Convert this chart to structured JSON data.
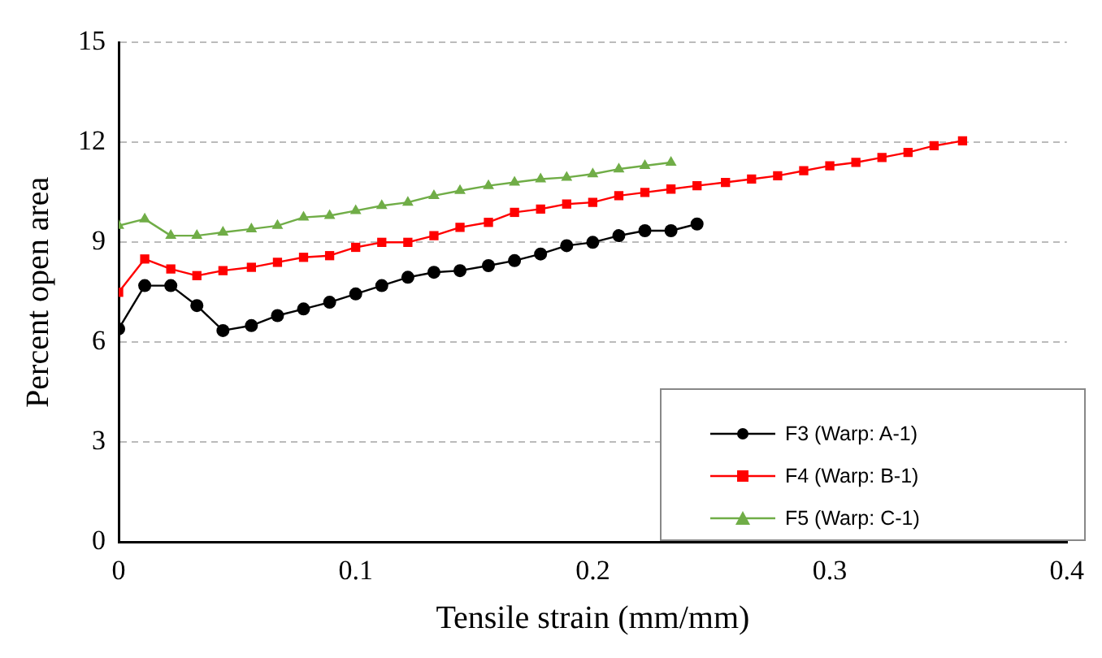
{
  "chart_data": {
    "type": "line",
    "xlabel": "Tensile strain (mm/mm)",
    "ylabel": "Percent open area",
    "xlim": [
      0,
      0.4
    ],
    "xticks": [
      0,
      0.1,
      0.2,
      0.3,
      0.4
    ],
    "ylim": [
      0,
      15
    ],
    "yticks": [
      0,
      3,
      6,
      9,
      12,
      15
    ],
    "grid": "y",
    "legend": "bottom right",
    "line_style": "solid",
    "series": [
      {
        "name": "F3 (Warp: A-1)",
        "color": "#000000",
        "marker": "circle",
        "x": [
          0,
          0.011,
          0.022,
          0.033,
          0.044,
          0.056,
          0.067,
          0.078,
          0.089,
          0.1,
          0.111,
          0.122,
          0.133,
          0.144,
          0.156,
          0.167,
          0.178,
          0.189,
          0.2,
          0.211,
          0.222,
          0.233,
          0.244
        ],
        "values": [
          6.4,
          7.7,
          7.7,
          7.1,
          6.35,
          6.5,
          6.8,
          7.0,
          7.2,
          7.45,
          7.7,
          7.95,
          8.1,
          8.15,
          8.3,
          8.45,
          8.65,
          8.9,
          9.0,
          9.2,
          9.35,
          9.35,
          9.55
        ]
      },
      {
        "name": "F4 (Warp: B-1)",
        "color": "#ff0000",
        "marker": "square",
        "x": [
          0,
          0.011,
          0.022,
          0.033,
          0.044,
          0.056,
          0.067,
          0.078,
          0.089,
          0.1,
          0.111,
          0.122,
          0.133,
          0.144,
          0.156,
          0.167,
          0.178,
          0.189,
          0.2,
          0.211,
          0.222,
          0.233,
          0.244,
          0.256,
          0.267,
          0.278,
          0.289,
          0.3,
          0.311,
          0.322,
          0.333,
          0.344,
          0.356
        ],
        "values": [
          7.5,
          8.5,
          8.2,
          8.0,
          8.15,
          8.25,
          8.4,
          8.55,
          8.6,
          8.85,
          9.0,
          9.0,
          9.2,
          9.45,
          9.6,
          9.9,
          10.0,
          10.15,
          10.2,
          10.4,
          10.5,
          10.6,
          10.7,
          10.8,
          10.9,
          11.0,
          11.15,
          11.3,
          11.4,
          11.55,
          11.7,
          11.9,
          12.05
        ]
      },
      {
        "name": "F5 (Warp: C-1)",
        "color": "#70ad47",
        "marker": "triangle",
        "x": [
          0,
          0.011,
          0.022,
          0.033,
          0.044,
          0.056,
          0.067,
          0.078,
          0.089,
          0.1,
          0.111,
          0.122,
          0.133,
          0.144,
          0.156,
          0.167,
          0.178,
          0.189,
          0.2,
          0.211,
          0.222,
          0.233
        ],
        "values": [
          9.5,
          9.7,
          9.2,
          9.2,
          9.3,
          9.4,
          9.5,
          9.75,
          9.8,
          9.95,
          10.1,
          10.2,
          10.4,
          10.55,
          10.7,
          10.8,
          10.9,
          10.95,
          11.05,
          11.2,
          11.3,
          11.4
        ]
      }
    ]
  }
}
